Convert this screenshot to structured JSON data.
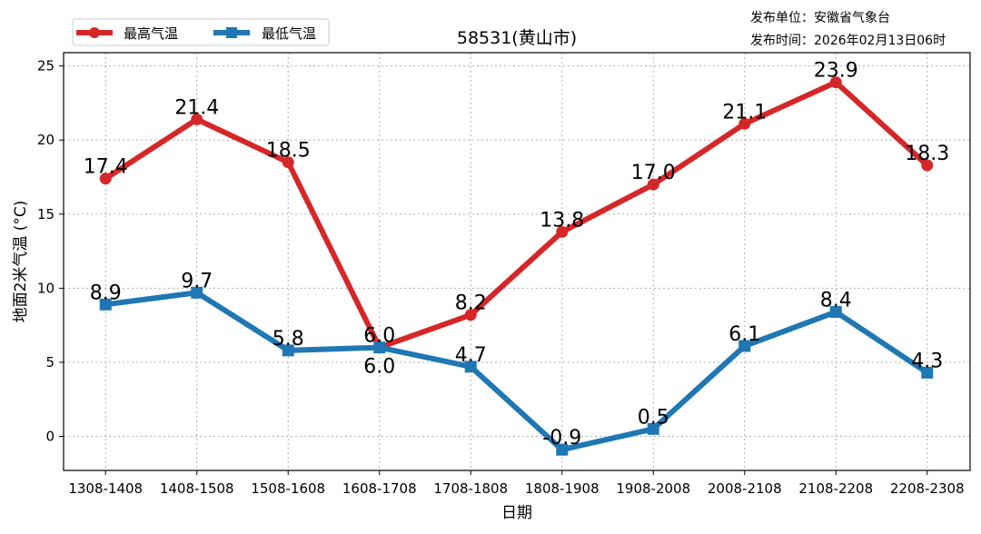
{
  "header": {
    "publisher": "发布单位：安徽省气象台",
    "publish_time": "发布时间：2026年02月13日06时"
  },
  "chart_data": {
    "type": "line",
    "title": "58531(黄山市)",
    "xlabel": "日期",
    "ylabel": "地面2米气温 (°C)",
    "categories": [
      "1308-1408",
      "1408-1508",
      "1508-1608",
      "1608-1708",
      "1708-1808",
      "1808-1908",
      "1908-2008",
      "2008-2108",
      "2108-2208",
      "2208-2308"
    ],
    "ylim": [
      -2.3,
      25.9
    ],
    "yticks": [
      0,
      5,
      10,
      15,
      20,
      25
    ],
    "grid": true,
    "legend_position": "top-left",
    "series": [
      {
        "name": "最高气温",
        "color": "#d62728",
        "marker": "circle",
        "values": [
          17.4,
          21.4,
          18.5,
          6.0,
          8.2,
          13.8,
          17.0,
          21.1,
          23.9,
          18.3
        ]
      },
      {
        "name": "最低气温",
        "color": "#1f77b4",
        "marker": "square",
        "values": [
          8.9,
          9.7,
          5.8,
          6.0,
          4.7,
          -0.9,
          0.5,
          6.1,
          8.4,
          4.3
        ]
      }
    ]
  }
}
